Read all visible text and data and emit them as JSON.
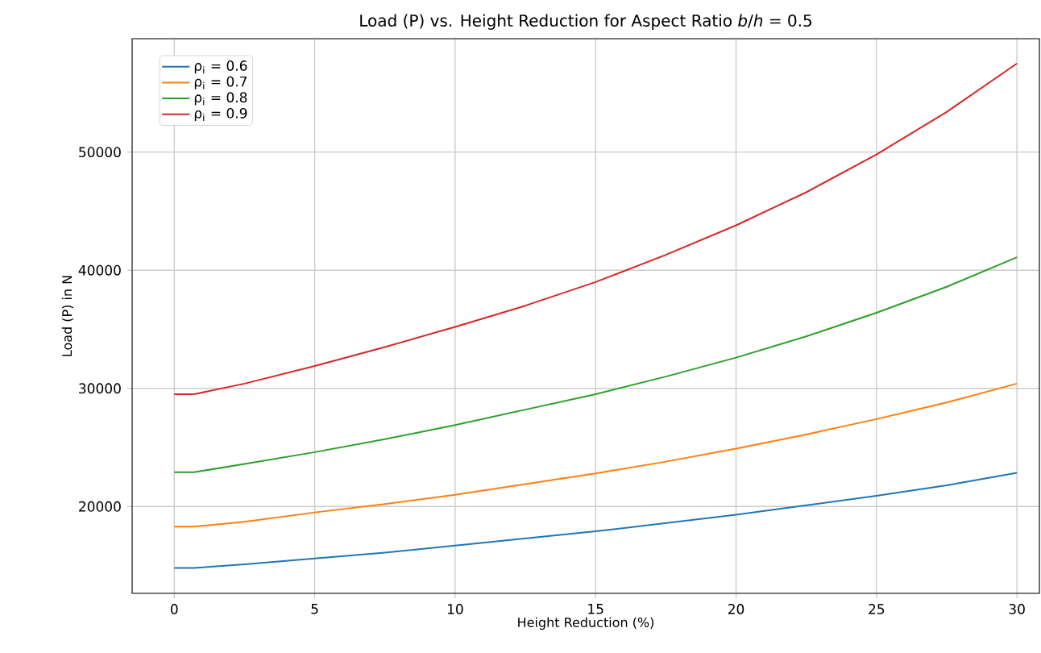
{
  "chart_data": {
    "type": "line",
    "title": "Load (P) vs. Height Reduction for Aspect Ratio *b*/*h* = 0.5",
    "xlabel": "Height Reduction (%)",
    "ylabel": "Load (P) in N",
    "x": [
      0,
      0.7,
      2.5,
      5,
      7.5,
      10,
      12.5,
      15,
      17.5,
      20,
      22.5,
      25,
      27.5,
      30
    ],
    "series": [
      {
        "name": "ρ$_{i}$ = 0.6",
        "color": "#1f77b4",
        "values": [
          14800,
          14800,
          15100,
          15600,
          16100,
          16700,
          17300,
          17900,
          18600,
          19300,
          20100,
          20900,
          21800,
          22850
        ]
      },
      {
        "name": "ρ$_{i}$ = 0.7",
        "color": "#ff7f0e",
        "values": [
          18300,
          18300,
          18700,
          19500,
          20200,
          21000,
          21900,
          22800,
          23800,
          24900,
          26100,
          27400,
          28800,
          30400
        ]
      },
      {
        "name": "ρ$_{i}$ = 0.8",
        "color": "#2ca02c",
        "values": [
          22900,
          22900,
          23600,
          24600,
          25700,
          26900,
          28200,
          29500,
          31000,
          32600,
          34400,
          36400,
          38600,
          41100
        ]
      },
      {
        "name": "ρ$_{i}$ = 0.9",
        "color": "#d62728",
        "values": [
          29500,
          29500,
          30400,
          31900,
          33500,
          35200,
          37000,
          39000,
          41300,
          43800,
          46600,
          49800,
          53400,
          57500
        ]
      }
    ],
    "xlim": [
      -1.5,
      30.8
    ],
    "ylim": [
      12650,
      59600
    ],
    "xticks": [
      0,
      5,
      10,
      15,
      20,
      25,
      30
    ],
    "yticks": [
      20000,
      30000,
      40000,
      50000
    ],
    "grid": true,
    "legend": "top left",
    "line_style": "solid",
    "marker": "none"
  }
}
